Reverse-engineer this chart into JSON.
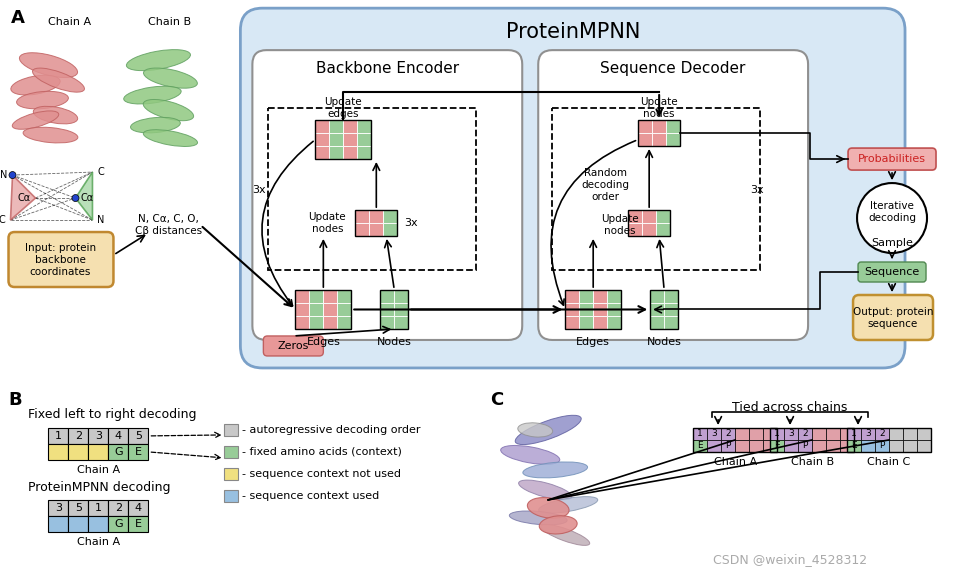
{
  "bg_color": "#ffffff",
  "panel_A_bg": "#d8e8f5",
  "red_color": "#e89898",
  "green_color": "#98cc98",
  "yellow_color": "#f0e080",
  "blue_color": "#98c0e0",
  "purple_color": "#c0a0d0",
  "pink_chain": "#e0a0a8",
  "gray_color": "#c8c8c8",
  "input_box_color": "#f5e0b0",
  "prob_box_color": "#f0b0b0",
  "watermark": "CSDN @weixin_4528312",
  "title": "ProteinMPNN",
  "enc_title": "Backbone Encoder",
  "dec_title": "Sequence Decoder"
}
